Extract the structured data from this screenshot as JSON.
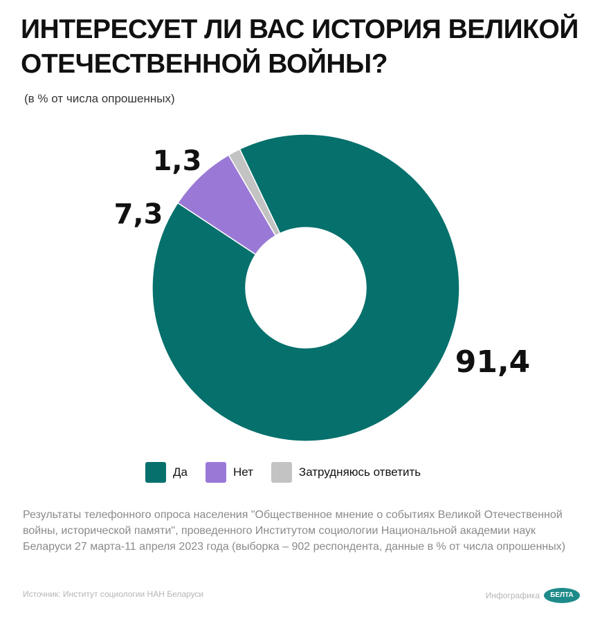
{
  "header": {
    "title_line1": "ИНТЕРЕСУЕТ ЛИ ВАС ИСТОРИЯ ВЕЛИКОЙ",
    "title_line2": "ОТЕЧЕСТВЕННОЙ ВОЙНЫ?",
    "subtitle": "(в % от числа опрошенных)"
  },
  "chart_data": {
    "type": "pie",
    "donut": true,
    "title": "ИНТЕРЕСУЕТ ЛИ ВАС ИСТОРИЯ ВЕЛИКОЙ ОТЕЧЕСТВЕННОЙ ВОЙНЫ?",
    "unit": "(в % от числа опрошенных)",
    "legend_position": "bottom",
    "series": [
      {
        "name": "Да",
        "value": 91.4,
        "label": "91,4",
        "color": "#05706c"
      },
      {
        "name": "Нет",
        "value": 7.3,
        "label": "7,3",
        "color": "#9a79d6"
      },
      {
        "name": "Затрудняюсь ответить",
        "value": 1.3,
        "label": "1,3",
        "color": "#c3c3c3"
      }
    ]
  },
  "footer": {
    "note": "Результаты телефонного опроса населения \"Общественное мнение о событиях Великой Отечественной войны, исторической памяти\", проведенного Институтом социологии Национальной академии наук Беларуси 27 марта-11 апреля 2023 года (выборка –  902 респондента, данные в % от числа опрошенных)",
    "source": "Источник: Институт социологии НАН Беларуси",
    "credit": "Инфографика",
    "logo_text": "БЕЛТА"
  }
}
